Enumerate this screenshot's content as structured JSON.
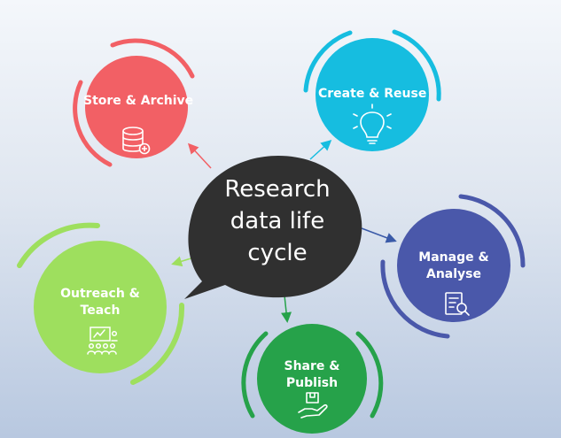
{
  "center": {
    "title_lines": [
      "Research",
      "data life",
      "cycle"
    ]
  },
  "nodes": {
    "store_archive": {
      "label_lines": [
        "Store & Archive"
      ],
      "color": "#f26065",
      "icon": "database-add-icon"
    },
    "create_reuse": {
      "label_lines": [
        "Create & Reuse"
      ],
      "color": "#16bde0",
      "icon": "lightbulb-icon"
    },
    "manage_analyse": {
      "label_lines": [
        "Manage &",
        "Analyse"
      ],
      "color": "#4a58aa",
      "icon": "document-search-icon"
    },
    "share_publish": {
      "label_lines": [
        "Share &",
        "Publish"
      ],
      "color": "#26a24a",
      "icon": "hand-box-icon"
    },
    "outreach_teach": {
      "label_lines": [
        "Outreach &",
        "Teach"
      ],
      "color": "#9edf5e",
      "icon": "presentation-audience-icon"
    }
  },
  "colors": {
    "bubble": "#303030",
    "arrow_store": "#f26065",
    "arrow_create": "#16bde0",
    "arrow_manage": "#3a5aa8",
    "arrow_share": "#26a24a",
    "arrow_outreach": "#9edf5e"
  }
}
